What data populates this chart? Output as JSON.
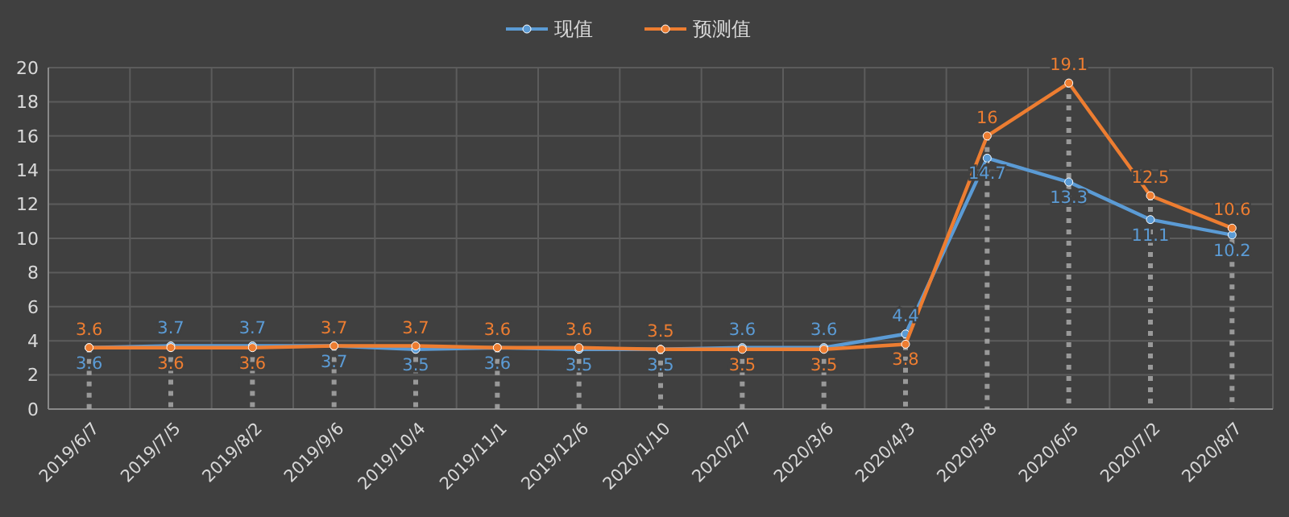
{
  "chart_data": {
    "type": "line",
    "categories": [
      "2019/6/7",
      "2019/7/5",
      "2019/8/2",
      "2019/9/6",
      "2019/10/4",
      "2019/11/1",
      "2019/12/6",
      "2020/1/10",
      "2020/2/7",
      "2020/3/6",
      "2020/4/3",
      "2020/5/8",
      "2020/6/5",
      "2020/7/2",
      "2020/8/7"
    ],
    "series": [
      {
        "name": "现值",
        "color": "#5b9bd5",
        "values": [
          3.6,
          3.7,
          3.7,
          3.7,
          3.5,
          3.6,
          3.5,
          3.5,
          3.6,
          3.6,
          4.4,
          14.7,
          13.3,
          11.1,
          10.2
        ]
      },
      {
        "name": "预测值",
        "color": "#ed7d31",
        "values": [
          3.6,
          3.6,
          3.6,
          3.7,
          3.7,
          3.6,
          3.6,
          3.5,
          3.5,
          3.5,
          3.8,
          16,
          19.1,
          12.5,
          10.6
        ]
      }
    ],
    "ylim": [
      0,
      20
    ],
    "yticks": [
      0,
      2,
      4,
      6,
      8,
      10,
      12,
      14,
      16,
      18,
      20
    ],
    "grid": true,
    "legend": "top",
    "marker": "circle",
    "line_style": "solid",
    "data_labels": true
  }
}
